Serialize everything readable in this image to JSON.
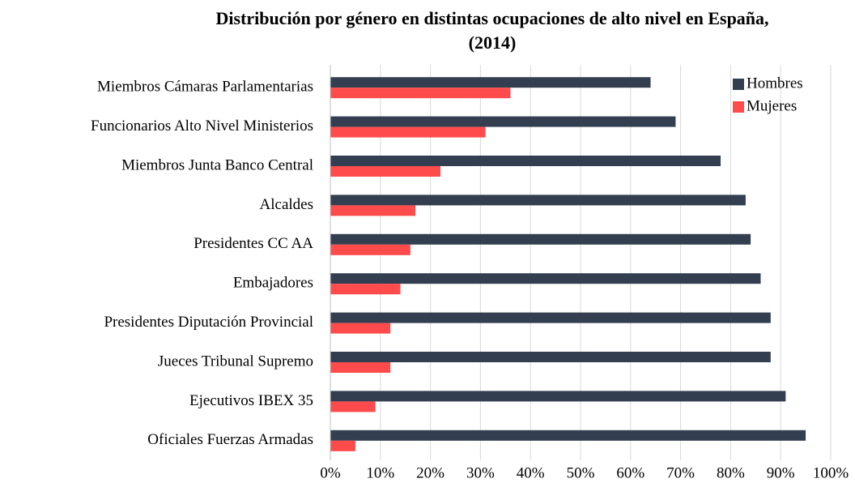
{
  "chart_data": {
    "type": "hbar",
    "title": "Distribución por género en distintas ocupaciones de alto nivel en España, (2014)",
    "categories": [
      "Miembros Cámaras Parlamentarias",
      "Funcionarios Alto Nivel Ministerios",
      "Miembros Junta Banco Central",
      "Alcaldes",
      "Presidentes CC AA",
      "Embajadores",
      "Presidentes Diputación Provincial",
      "Jueces Tribunal Supremo",
      "Ejecutivos IBEX 35",
      "Oficiales Fuerzas Armadas"
    ],
    "series": [
      {
        "name": "Hombres",
        "color": "#333f50",
        "values": [
          64,
          69,
          78,
          83,
          84,
          86,
          88,
          88,
          91,
          95
        ]
      },
      {
        "name": "Mujeres",
        "color": "#ff4b4b",
        "values": [
          36,
          31,
          22,
          17,
          16,
          14,
          12,
          12,
          9,
          5
        ]
      }
    ],
    "xlim": [
      0,
      100
    ],
    "xticks": [
      {
        "value": 0,
        "label": "0%"
      },
      {
        "value": 10,
        "label": "10%"
      },
      {
        "value": 20,
        "label": "20%"
      },
      {
        "value": 30,
        "label": "30%"
      },
      {
        "value": 40,
        "label": "40%"
      },
      {
        "value": 50,
        "label": "50%"
      },
      {
        "value": 60,
        "label": "60%"
      },
      {
        "value": 70,
        "label": "70%"
      },
      {
        "value": 80,
        "label": "80%"
      },
      {
        "value": 90,
        "label": "90%"
      },
      {
        "value": 100,
        "label": "100%"
      }
    ],
    "grid": true,
    "legend": "top-right"
  }
}
